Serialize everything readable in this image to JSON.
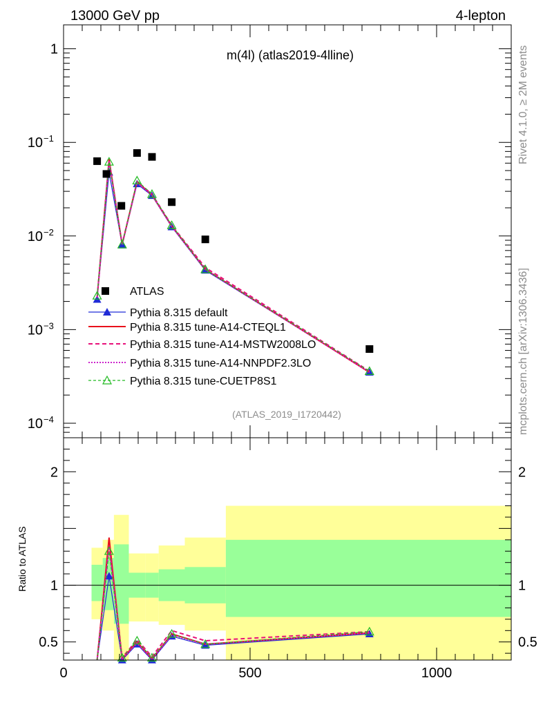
{
  "header": {
    "energy": "13000 GeV pp",
    "process": "4-lepton",
    "side_rivet": "Rivet 4.1.0, ≥ 2M events",
    "side_site": "mcplots.cern.ch [arXiv:1306.3436]"
  },
  "colors": {
    "data": "#000000",
    "default": "#1f2bd6",
    "cteql1": "#e8101a",
    "mstw": "#e8107a",
    "nnpdf": "#cc22cc",
    "cuetp8s1": "#22bb22",
    "band_inner": "#99ff99",
    "band_outer": "#ffff99"
  },
  "chart_data": {
    "type": "line",
    "title": "m(4l) (atlas2019-4lline)",
    "watermark": "(ATLAS_2019_I1720442)",
    "main": {
      "yscale": "log",
      "ylim": [
        7e-05,
        1.8
      ],
      "ytick_labels": [
        {
          "value": 1,
          "label": "1"
        },
        {
          "value": 0.1,
          "base": "10",
          "exp": "−1"
        },
        {
          "value": 0.01,
          "base": "10",
          "exp": "−2"
        },
        {
          "value": 0.001,
          "base": "10",
          "exp": "−3"
        },
        {
          "value": 0.0001,
          "base": "10",
          "exp": "−4"
        }
      ],
      "data_x": [
        90,
        115,
        155,
        197,
        237,
        290,
        380,
        820
      ],
      "data_y": [
        0.063,
        0.046,
        0.021,
        0.077,
        0.07,
        0.023,
        0.0092,
        0.00062
      ],
      "mc_x": [
        90,
        122,
        157,
        197,
        237,
        290,
        380,
        820
      ],
      "series": [
        {
          "name": "Pythia 8.315 default",
          "key": "default",
          "y": [
            0.0021,
            0.048,
            0.008,
            0.036,
            0.027,
            0.0125,
            0.0043,
            0.00035
          ]
        },
        {
          "name": "Pythia 8.315 tune-A14-CTEQL1",
          "key": "cteql1",
          "y": [
            0.0022,
            0.066,
            0.0081,
            0.038,
            0.0275,
            0.0128,
            0.0044,
            0.00035
          ]
        },
        {
          "name": "Pythia 8.315 tune-A14-MSTW2008LO",
          "key": "mstw",
          "y": [
            0.0022,
            0.064,
            0.0082,
            0.038,
            0.028,
            0.013,
            0.0046,
            0.00036
          ]
        },
        {
          "name": "Pythia 8.315 tune-A14-NNPDF2.3LO",
          "key": "nnpdf",
          "y": [
            0.0022,
            0.062,
            0.008,
            0.037,
            0.0275,
            0.0127,
            0.0044,
            0.00035
          ]
        },
        {
          "name": "Pythia 8.315 tune-CUETP8S1",
          "key": "cuetp8s1",
          "y": [
            0.0023,
            0.062,
            0.0081,
            0.039,
            0.028,
            0.013,
            0.0044,
            0.00036
          ]
        }
      ],
      "legend": [
        "ATLAS",
        "Pythia 8.315 default",
        "Pythia 8.315 tune-A14-CTEQL1",
        "Pythia 8.315 tune-A14-MSTW2008LO",
        "Pythia 8.315 tune-A14-NNPDF2.3LO",
        "Pythia 8.315 tune-CUETP8S1"
      ]
    },
    "ratio": {
      "ylabel": "Ratio to ATLAS",
      "ylim": [
        0.34,
        2.3
      ],
      "ytick_labels": [
        {
          "value": 0.5,
          "label": "0.5"
        },
        {
          "value": 1,
          "label": "1"
        },
        {
          "value": 2,
          "label": "2"
        }
      ],
      "bands": [
        {
          "x0": 75,
          "x1": 105,
          "inner": [
            0.86,
            1.18
          ],
          "outer": [
            0.7,
            1.33
          ]
        },
        {
          "x0": 105,
          "x1": 135,
          "inner": [
            0.78,
            1.24
          ],
          "outer": [
            0.6,
            1.4
          ]
        },
        {
          "x0": 135,
          "x1": 175,
          "inner": [
            0.66,
            1.36
          ],
          "outer": [
            0.34,
            1.62
          ]
        },
        {
          "x0": 175,
          "x1": 220,
          "inner": [
            0.89,
            1.11
          ],
          "outer": [
            0.68,
            1.28
          ]
        },
        {
          "x0": 220,
          "x1": 255,
          "inner": [
            0.89,
            1.11
          ],
          "outer": [
            0.68,
            1.28
          ]
        },
        {
          "x0": 255,
          "x1": 325,
          "inner": [
            0.86,
            1.14
          ],
          "outer": [
            0.65,
            1.35
          ]
        },
        {
          "x0": 325,
          "x1": 435,
          "inner": [
            0.84,
            1.16
          ],
          "outer": [
            0.6,
            1.42
          ]
        },
        {
          "x0": 435,
          "x1": 1200,
          "inner": [
            0.72,
            1.4
          ],
          "outer": [
            0.34,
            1.7
          ]
        }
      ],
      "series": [
        {
          "key": "default",
          "y": [
            0.2,
            1.08,
            0.34,
            0.48,
            0.34,
            0.55,
            0.47,
            0.57
          ]
        },
        {
          "key": "cteql1",
          "y": [
            0.2,
            1.42,
            0.35,
            0.5,
            0.35,
            0.57,
            0.48,
            0.58
          ]
        },
        {
          "key": "mstw",
          "y": [
            0.21,
            1.36,
            0.36,
            0.52,
            0.37,
            0.6,
            0.51,
            0.59
          ]
        },
        {
          "key": "nnpdf",
          "y": [
            0.2,
            1.33,
            0.35,
            0.49,
            0.35,
            0.56,
            0.48,
            0.58
          ]
        },
        {
          "key": "cuetp8s1",
          "y": [
            0.21,
            1.3,
            0.36,
            0.51,
            0.36,
            0.57,
            0.48,
            0.59
          ]
        }
      ]
    },
    "x": {
      "xlim": [
        0,
        1200
      ],
      "xtick_labels": [
        0,
        500,
        1000
      ]
    }
  }
}
